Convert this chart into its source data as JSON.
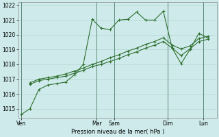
{
  "xlabel": "Pression niveau de la mer( hPa )",
  "bg_color": "#ceeaea",
  "grid_color": "#b0d8d0",
  "line_color": "#2d6e2d",
  "vline_color": "#4a7a6a",
  "ylim": [
    1014.4,
    1022.2
  ],
  "xlim": [
    -0.3,
    22.0
  ],
  "day_labels": [
    "Ven",
    "Mar",
    "Sam",
    "Dim",
    "Lun"
  ],
  "day_positions": [
    0.0,
    8.5,
    10.5,
    16.5,
    20.5
  ],
  "vline_positions": [
    0.0,
    8.5,
    10.5,
    16.5,
    20.5
  ],
  "yticks": [
    1015,
    1016,
    1017,
    1018,
    1019,
    1020,
    1021,
    1022
  ],
  "ytick_fontsize": 5.5,
  "xtick_fontsize": 5.5,
  "xlabel_fontsize": 6.0,
  "series1_x": [
    0,
    1,
    2,
    3,
    4,
    5,
    6,
    7,
    8,
    9,
    10,
    11,
    12,
    13,
    14,
    15,
    16,
    17,
    18,
    19,
    20,
    21
  ],
  "series1_y": [
    1014.6,
    1015.0,
    1016.3,
    1016.6,
    1016.7,
    1016.8,
    1017.3,
    1018.0,
    1021.05,
    1020.45,
    1020.35,
    1021.0,
    1021.05,
    1021.55,
    1021.0,
    1021.0,
    1021.6,
    1019.1,
    1018.05,
    1019.0,
    1020.1,
    1019.8
  ],
  "series2_x": [
    1,
    2,
    3,
    4,
    5,
    6,
    7,
    8,
    9,
    10,
    11,
    12,
    13,
    14,
    15,
    16,
    17,
    18,
    19,
    20,
    21
  ],
  "series2_y": [
    1016.75,
    1017.0,
    1017.1,
    1017.2,
    1017.35,
    1017.55,
    1017.75,
    1018.0,
    1018.2,
    1018.45,
    1018.65,
    1018.9,
    1019.1,
    1019.35,
    1019.55,
    1019.8,
    1019.3,
    1019.05,
    1019.25,
    1019.75,
    1019.9
  ],
  "series3_x": [
    1,
    2,
    3,
    4,
    5,
    6,
    7,
    8,
    9,
    10,
    11,
    12,
    13,
    14,
    15,
    16,
    17,
    18,
    19,
    20,
    21
  ],
  "series3_y": [
    1016.65,
    1016.9,
    1017.0,
    1017.1,
    1017.2,
    1017.4,
    1017.6,
    1017.85,
    1018.0,
    1018.2,
    1018.4,
    1018.65,
    1018.85,
    1019.1,
    1019.3,
    1019.55,
    1019.1,
    1018.6,
    1019.05,
    1019.55,
    1019.7
  ]
}
